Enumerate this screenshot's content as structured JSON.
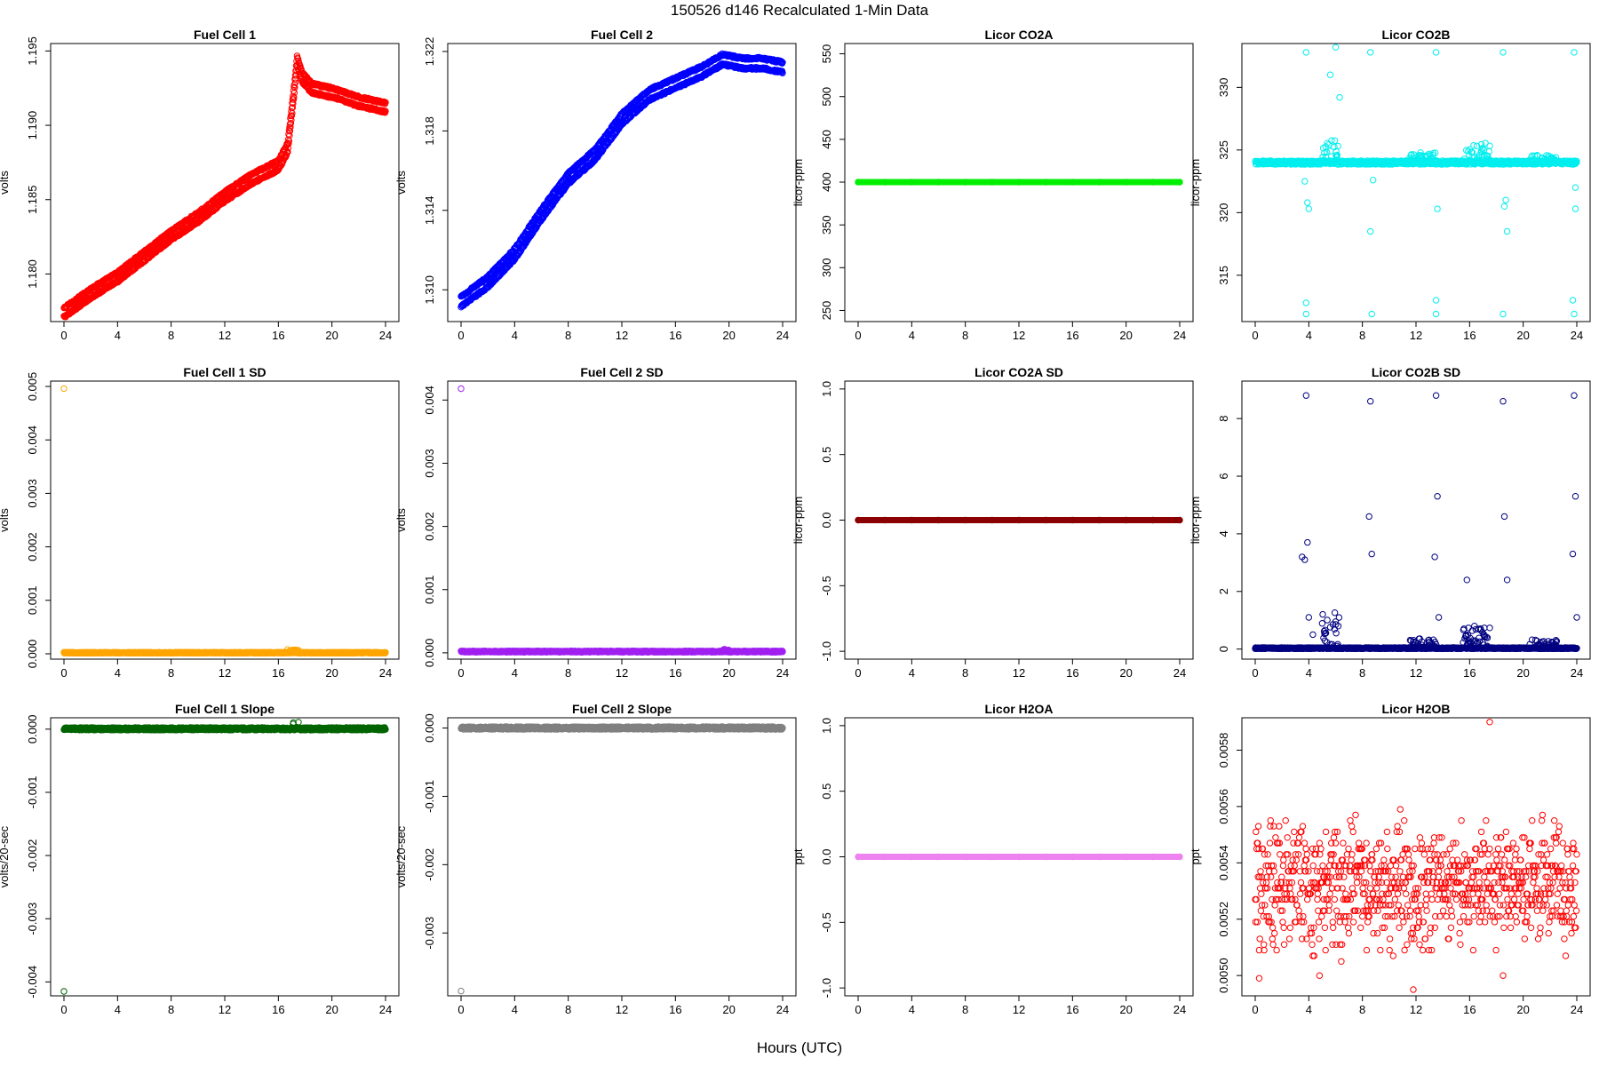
{
  "title": "150526   d146   Recalculated 1-Min Data",
  "xcaption": "Hours (UTC)",
  "chart_data": [
    {
      "type": "scatter",
      "title": "Fuel Cell 1",
      "ylabel": "volts",
      "color": "#ff0000",
      "xlim": [
        0,
        24
      ],
      "ylim": [
        1.1768,
        1.1955
      ],
      "xticks": [
        0,
        4,
        8,
        12,
        16,
        20,
        24
      ],
      "yticks": [
        1.18,
        1.185,
        1.19,
        1.195
      ],
      "yticklabels": [
        "1.180",
        "1.185",
        "1.190",
        "1.195"
      ],
      "series_kind": "dual_trend",
      "profile": [
        [
          0,
          1.1774
        ],
        [
          2,
          1.1787
        ],
        [
          4,
          1.1798
        ],
        [
          6,
          1.1812
        ],
        [
          8,
          1.1826
        ],
        [
          10,
          1.1838
        ],
        [
          12,
          1.1852
        ],
        [
          14,
          1.1864
        ],
        [
          16,
          1.1873
        ],
        [
          16.7,
          1.1885
        ],
        [
          17.2,
          1.1925
        ],
        [
          17.4,
          1.1943
        ],
        [
          17.8,
          1.1932
        ],
        [
          18.5,
          1.1925
        ],
        [
          20,
          1.1922
        ],
        [
          22,
          1.1916
        ],
        [
          24,
          1.1912
        ]
      ],
      "offset": 0.0006
    },
    {
      "type": "scatter",
      "title": "Fuel Cell 2",
      "ylabel": "volts",
      "color": "#0000ff",
      "xlim": [
        0,
        24
      ],
      "ylim": [
        1.3084,
        1.3224
      ],
      "xticks": [
        0,
        4,
        8,
        12,
        16,
        20,
        24
      ],
      "yticks": [
        1.31,
        1.314,
        1.318,
        1.322
      ],
      "yticklabels": [
        "1.310",
        "1.314",
        "1.318",
        "1.322"
      ],
      "series_kind": "dual_trend",
      "profile": [
        [
          0,
          1.3094
        ],
        [
          2,
          1.3104
        ],
        [
          4,
          1.3118
        ],
        [
          6,
          1.3138
        ],
        [
          8,
          1.3156
        ],
        [
          10,
          1.3168
        ],
        [
          12,
          1.3186
        ],
        [
          14,
          1.3198
        ],
        [
          16,
          1.3204
        ],
        [
          18,
          1.321
        ],
        [
          19.5,
          1.3216
        ],
        [
          21,
          1.3214
        ],
        [
          22.5,
          1.3214
        ],
        [
          24,
          1.3212
        ]
      ],
      "offset": 0.0005
    },
    {
      "type": "scatter",
      "title": "Licor CO2A",
      "ylabel": "licor-ppm",
      "color": "#00ee00",
      "xlim": [
        0,
        24
      ],
      "ylim": [
        237,
        562
      ],
      "xticks": [
        0,
        4,
        8,
        12,
        16,
        20,
        24
      ],
      "yticks": [
        250,
        300,
        350,
        400,
        450,
        500,
        550
      ],
      "yticklabels": [
        "250",
        "300",
        "350",
        "400",
        "450",
        "500",
        "550"
      ],
      "series_kind": "flat",
      "flat_value": 400,
      "marker": "filled"
    },
    {
      "type": "scatter",
      "title": "Licor CO2B",
      "ylabel": "licor-ppm",
      "color": "#00eeee",
      "xlim": [
        0,
        24
      ],
      "ylim": [
        311.3,
        333.5
      ],
      "xticks": [
        0,
        4,
        8,
        12,
        16,
        20,
        24
      ],
      "yticks": [
        315,
        320,
        325,
        330
      ],
      "yticklabels": [
        "315",
        "320",
        "325",
        "330"
      ],
      "series_kind": "noisy_base",
      "base": 324.0,
      "noise": 0.15,
      "bursts": [
        [
          5.0,
          6.2,
          1.8
        ],
        [
          11.5,
          13.5,
          0.8
        ],
        [
          15.5,
          17.5,
          1.6
        ],
        [
          20.5,
          22.5,
          0.6
        ]
      ],
      "outliers": [
        [
          3.8,
          332.8
        ],
        [
          3.8,
          312.8
        ],
        [
          3.9,
          320.8
        ],
        [
          4.0,
          320.3
        ],
        [
          3.8,
          311.9
        ],
        [
          3.7,
          322.5
        ],
        [
          6.0,
          333.2
        ],
        [
          5.6,
          331.0
        ],
        [
          6.3,
          329.2
        ],
        [
          8.6,
          332.8
        ],
        [
          8.7,
          311.9
        ],
        [
          8.6,
          318.5
        ],
        [
          8.8,
          322.6
        ],
        [
          13.5,
          332.8
        ],
        [
          13.6,
          320.3
        ],
        [
          13.5,
          313.0
        ],
        [
          13.5,
          311.9
        ],
        [
          18.5,
          332.8
        ],
        [
          18.7,
          321.0
        ],
        [
          18.6,
          320.5
        ],
        [
          18.5,
          311.9
        ],
        [
          18.8,
          318.5
        ],
        [
          23.8,
          332.8
        ],
        [
          23.9,
          320.3
        ],
        [
          23.7,
          313.0
        ],
        [
          23.8,
          311.9
        ],
        [
          23.9,
          322.0
        ]
      ]
    },
    {
      "type": "scatter",
      "title": "Fuel Cell 1 SD",
      "ylabel": "volts",
      "color": "#ffa500",
      "xlim": [
        0,
        24
      ],
      "ylim": [
        -0.0001,
        0.0051
      ],
      "xticks": [
        0,
        4,
        8,
        12,
        16,
        20,
        24
      ],
      "yticks": [
        0,
        0.001,
        0.002,
        0.003,
        0.004,
        0.005
      ],
      "yticklabels": [
        "0.000",
        "0.001",
        "0.002",
        "0.003",
        "0.004",
        "0.005"
      ],
      "series_kind": "noisy_base",
      "base": 2e-05,
      "noise": 1e-05,
      "bursts": [
        [
          16.5,
          17.5,
          6e-05
        ]
      ],
      "outliers": [
        [
          0.0,
          0.00496
        ]
      ]
    },
    {
      "type": "scatter",
      "title": "Fuel Cell 2 SD",
      "ylabel": "volts",
      "color": "#a020f0",
      "xlim": [
        0,
        24
      ],
      "ylim": [
        -0.0001,
        0.0043
      ],
      "xticks": [
        0,
        4,
        8,
        12,
        16,
        20,
        24
      ],
      "yticks": [
        0,
        0.001,
        0.002,
        0.003,
        0.004
      ],
      "yticklabels": [
        "0.000",
        "0.001",
        "0.002",
        "0.003",
        "0.004"
      ],
      "series_kind": "noisy_base",
      "base": 2e-05,
      "noise": 1e-05,
      "bursts": [
        [
          19.5,
          20.0,
          4e-05
        ]
      ],
      "outliers": [
        [
          0.0,
          0.00418
        ]
      ]
    },
    {
      "type": "scatter",
      "title": "Licor CO2A SD",
      "ylabel": "licor-ppm",
      "color": "#8b0000",
      "xlim": [
        0,
        24
      ],
      "ylim": [
        -1.06,
        1.06
      ],
      "xticks": [
        0,
        4,
        8,
        12,
        16,
        20,
        24
      ],
      "yticks": [
        -1.0,
        -0.5,
        0,
        0.5,
        1.0
      ],
      "yticklabels": [
        "-1.0",
        "-0.5",
        "0.0",
        "0.5",
        "1.0"
      ],
      "series_kind": "flat",
      "flat_value": 0,
      "marker": "filled"
    },
    {
      "type": "scatter",
      "title": "Licor CO2B SD",
      "ylabel": "licor-ppm",
      "color": "#000080",
      "xlim": [
        0,
        24
      ],
      "ylim": [
        -0.35,
        9.3
      ],
      "xticks": [
        0,
        4,
        8,
        12,
        16,
        20,
        24
      ],
      "yticks": [
        0,
        2,
        4,
        6,
        8
      ],
      "yticklabels": [
        "0",
        "2",
        "4",
        "6",
        "8"
      ],
      "series_kind": "noisy_base",
      "base": 0.03,
      "noise": 0.02,
      "bursts": [
        [
          5.0,
          6.3,
          1.3
        ],
        [
          11.5,
          13.5,
          0.35
        ],
        [
          15.5,
          17.5,
          0.8
        ],
        [
          20.5,
          22.5,
          0.3
        ]
      ],
      "outliers": [
        [
          3.8,
          8.8
        ],
        [
          3.5,
          3.2
        ],
        [
          3.7,
          3.1
        ],
        [
          3.9,
          3.7
        ],
        [
          4.0,
          1.1
        ],
        [
          4.3,
          0.5
        ],
        [
          8.6,
          8.6
        ],
        [
          8.5,
          4.6
        ],
        [
          8.7,
          3.3
        ],
        [
          13.5,
          8.8
        ],
        [
          13.6,
          5.3
        ],
        [
          13.4,
          3.2
        ],
        [
          13.7,
          1.1
        ],
        [
          15.8,
          2.4
        ],
        [
          18.5,
          8.6
        ],
        [
          18.6,
          4.6
        ],
        [
          18.8,
          2.4
        ],
        [
          23.8,
          8.8
        ],
        [
          23.9,
          5.3
        ],
        [
          23.7,
          3.3
        ],
        [
          24.0,
          1.1
        ]
      ]
    },
    {
      "type": "scatter",
      "title": "Fuel Cell 1 Slope",
      "ylabel": "volts/20-sec",
      "color": "#006400",
      "xlim": [
        0,
        24
      ],
      "ylim": [
        -0.00422,
        0.00018
      ],
      "xticks": [
        0,
        4,
        8,
        12,
        16,
        20,
        24
      ],
      "yticks": [
        -0.004,
        -0.003,
        -0.002,
        -0.001,
        0
      ],
      "yticklabels": [
        "-0.004",
        "-0.003",
        "-0.002",
        "-0.001",
        "0.000"
      ],
      "series_kind": "noisy_base",
      "base": 5e-06,
      "noise": 2e-05,
      "bursts": [
        [
          17.0,
          17.5,
          0.00012
        ]
      ],
      "outliers": [
        [
          0.0,
          -0.00415
        ]
      ]
    },
    {
      "type": "scatter",
      "title": "Fuel Cell 2 Slope",
      "ylabel": "volts/20-sec",
      "color": "#808080",
      "xlim": [
        0,
        24
      ],
      "ylim": [
        -0.00392,
        0.00015
      ],
      "xticks": [
        0,
        4,
        8,
        12,
        16,
        20,
        24
      ],
      "yticks": [
        -0.003,
        -0.002,
        -0.001,
        0
      ],
      "yticklabels": [
        "-0.003",
        "-0.002",
        "-0.001",
        "0.000"
      ],
      "series_kind": "noisy_base",
      "base": 0.0,
      "noise": 2e-05,
      "bursts": [],
      "outliers": [
        [
          0.0,
          -0.00385
        ]
      ]
    },
    {
      "type": "scatter",
      "title": "Licor H2OA",
      "ylabel": "ppt",
      "color": "#ee82ee",
      "xlim": [
        0,
        24
      ],
      "ylim": [
        -1.06,
        1.06
      ],
      "xticks": [
        0,
        4,
        8,
        12,
        16,
        20,
        24
      ],
      "yticks": [
        -1.0,
        -0.5,
        0,
        0.5,
        1.0
      ],
      "yticklabels": [
        "-1.0",
        "-0.5",
        "0.0",
        "0.5",
        "1.0"
      ],
      "series_kind": "flat",
      "flat_value": 0,
      "marker": "filled"
    },
    {
      "type": "scatter",
      "title": "Licor H2OB",
      "ylabel": "ppt",
      "color": "#ff0000",
      "xlim": [
        0,
        24
      ],
      "ylim": [
        0.004928,
        0.005915
      ],
      "xticks": [
        0,
        4,
        8,
        12,
        16,
        20,
        24
      ],
      "yticks": [
        0.005,
        0.0052,
        0.0054,
        0.0056,
        0.0058
      ],
      "yticklabels": [
        "0.0050",
        "0.0052",
        "0.0054",
        "0.0056",
        "0.0058"
      ],
      "series_kind": "quantized",
      "qmin": 0.00501,
      "qmax": 0.00563,
      "qstep": 2e-05,
      "outliers": [
        [
          17.5,
          0.0059
        ],
        [
          11.8,
          0.00495
        ],
        [
          18.5,
          0.005
        ],
        [
          0.3,
          0.00499
        ],
        [
          4.8,
          0.005
        ]
      ]
    }
  ]
}
